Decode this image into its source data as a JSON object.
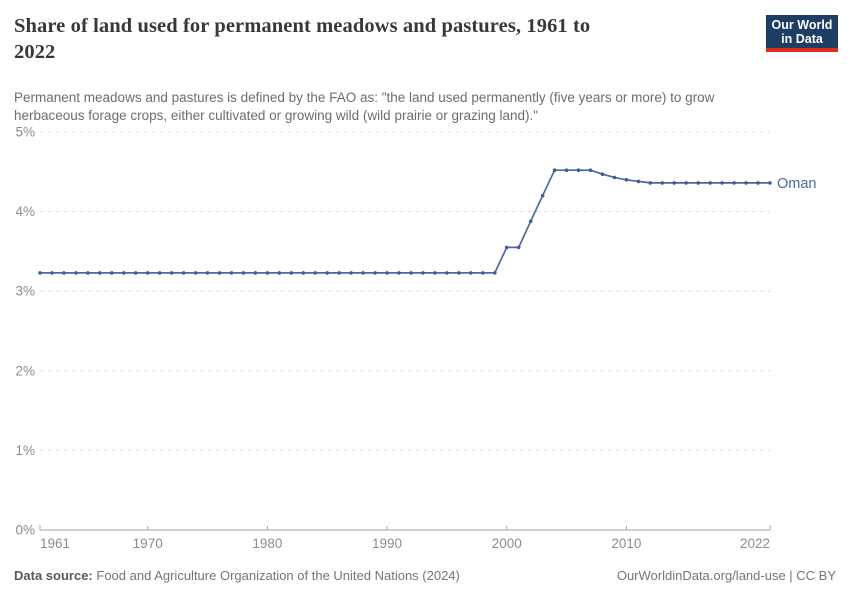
{
  "header": {
    "title_line1": "Share of land used for permanent meadows and pastures, 1961 to",
    "title_line2": "2022",
    "subtitle": "Permanent meadows and pastures is defined by the FAO as: \"the land used permanently (five years or more) to grow herbaceous forage crops, either cultivated or growing wild (wild prairie or grazing land).\""
  },
  "logo": {
    "line1": "Our World",
    "line2": "in Data",
    "bg_color": "#1d3d63",
    "accent_color": "#dc2d20"
  },
  "chart_data": {
    "type": "line",
    "title": "Share of land used for permanent meadows and pastures, 1961 to 2022",
    "xlabel": "",
    "ylabel": "",
    "xlim": [
      1961,
      2022
    ],
    "ylim": [
      0,
      5
    ],
    "grid": "horizontal-dashed",
    "legend_position": "end-of-line-label",
    "yticks": [
      {
        "value": 0,
        "label": "0%"
      },
      {
        "value": 1,
        "label": "1%"
      },
      {
        "value": 2,
        "label": "2%"
      },
      {
        "value": 3,
        "label": "3%"
      },
      {
        "value": 4,
        "label": "4%"
      },
      {
        "value": 5,
        "label": "5%"
      }
    ],
    "xticks": [
      {
        "value": 1961,
        "label": "1961"
      },
      {
        "value": 1970,
        "label": "1970"
      },
      {
        "value": 1980,
        "label": "1980"
      },
      {
        "value": 1990,
        "label": "1990"
      },
      {
        "value": 2000,
        "label": "2000"
      },
      {
        "value": 2010,
        "label": "2010"
      },
      {
        "value": 2022,
        "label": "2022"
      }
    ],
    "series": [
      {
        "name": "Oman",
        "color": "#4c6a9c",
        "marker_color": "#3f5d97",
        "x": [
          1961,
          1962,
          1963,
          1964,
          1965,
          1966,
          1967,
          1968,
          1969,
          1970,
          1971,
          1972,
          1973,
          1974,
          1975,
          1976,
          1977,
          1978,
          1979,
          1980,
          1981,
          1982,
          1983,
          1984,
          1985,
          1986,
          1987,
          1988,
          1989,
          1990,
          1991,
          1992,
          1993,
          1994,
          1995,
          1996,
          1997,
          1998,
          1999,
          2000,
          2001,
          2002,
          2003,
          2004,
          2005,
          2006,
          2007,
          2008,
          2009,
          2010,
          2011,
          2012,
          2013,
          2014,
          2015,
          2016,
          2017,
          2018,
          2019,
          2020,
          2021,
          2022
        ],
        "values": [
          3.23,
          3.23,
          3.23,
          3.23,
          3.23,
          3.23,
          3.23,
          3.23,
          3.23,
          3.23,
          3.23,
          3.23,
          3.23,
          3.23,
          3.23,
          3.23,
          3.23,
          3.23,
          3.23,
          3.23,
          3.23,
          3.23,
          3.23,
          3.23,
          3.23,
          3.23,
          3.23,
          3.23,
          3.23,
          3.23,
          3.23,
          3.23,
          3.23,
          3.23,
          3.23,
          3.23,
          3.23,
          3.23,
          3.23,
          3.55,
          3.55,
          3.88,
          4.2,
          4.52,
          4.52,
          4.52,
          4.52,
          4.47,
          4.43,
          4.4,
          4.38,
          4.36,
          4.36,
          4.36,
          4.36,
          4.36,
          4.36,
          4.36,
          4.36,
          4.36,
          4.36,
          4.36
        ]
      }
    ]
  },
  "footer": {
    "source_label": "Data source:",
    "source_text": "Food and Agriculture Organization of the United Nations (2024)",
    "credit": "OurWorldinData.org/land-use | CC BY"
  }
}
